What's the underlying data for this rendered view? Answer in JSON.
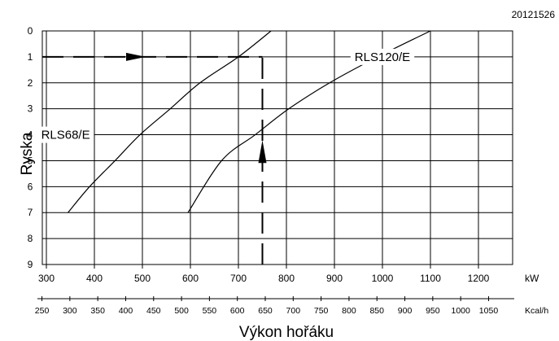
{
  "doc_code": "20121526",
  "chart_data": {
    "type": "line",
    "xlabel": "Výkon hořáku",
    "ylabel": "Ryska",
    "x_unit_primary": "kW",
    "x_unit_secondary": "Kcal/h",
    "x_ticks_kw": [
      300,
      400,
      500,
      600,
      700,
      800,
      900,
      1000,
      1100,
      1200
    ],
    "x_ticks_kcal": [
      250,
      300,
      350,
      400,
      450,
      500,
      550,
      600,
      650,
      700,
      750,
      800,
      850,
      900,
      950,
      1000,
      1050
    ],
    "y_ticks": [
      0,
      1,
      2,
      3,
      4,
      5,
      6,
      7,
      8,
      9
    ],
    "xlim_kw": [
      300,
      1200
    ],
    "ylim": [
      9,
      0
    ],
    "y_inverted": true,
    "grid": true,
    "series": [
      {
        "name": "RLS68/E",
        "points": [
          [
            345,
            7
          ],
          [
            390,
            6
          ],
          [
            443,
            5
          ],
          [
            495,
            4
          ],
          [
            558,
            3
          ],
          [
            620,
            2
          ],
          [
            700,
            1
          ],
          [
            768,
            0
          ]
        ]
      },
      {
        "name": "RLS120/E",
        "points": [
          [
            595,
            7
          ],
          [
            665,
            5
          ],
          [
            735,
            4
          ],
          [
            805,
            3
          ],
          [
            890,
            2
          ],
          [
            990,
            1
          ],
          [
            1100,
            0
          ]
        ]
      }
    ],
    "example": {
      "kw": 750,
      "ryska": 1
    }
  }
}
